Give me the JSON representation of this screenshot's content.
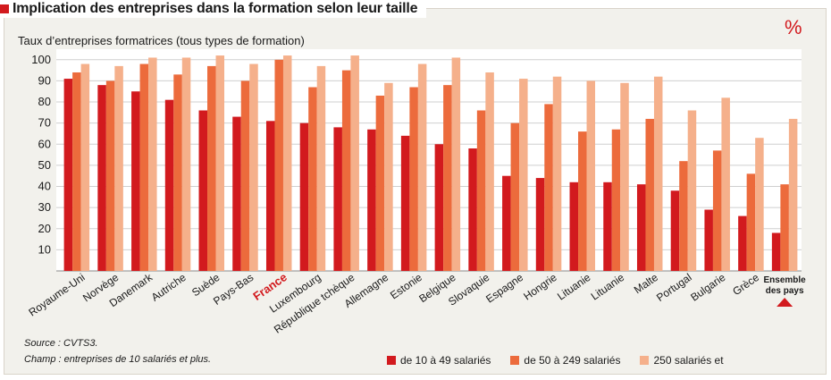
{
  "header": {
    "title": "Implication des entreprises dans la formation selon leur taille",
    "unit": "%"
  },
  "chart_data": {
    "type": "bar",
    "title": "Implication des entreprises dans la formation selon leur taille",
    "ylabel": "Taux d’entreprises formatrices (tous types de formation)",
    "xlabel": "",
    "ylim": [
      0,
      100
    ],
    "yticks": [
      10,
      20,
      30,
      40,
      50,
      60,
      70,
      80,
      90,
      100
    ],
    "grid": true,
    "categories": [
      "Royaume-Uni",
      "Norvège",
      "Danemark",
      "Autriche",
      "Suède",
      "Pays-Bas",
      "France",
      "Luxembourg",
      "République tchèque",
      "Allemagne",
      "Estonie",
      "Belgique",
      "Slovaquie",
      "Espagne",
      "Hongrie",
      "Lituanie",
      "Lituanie",
      "Malte",
      "Portugal",
      "Bulgarie",
      "Grèce",
      "Ensemble des pays"
    ],
    "highlight": {
      "France": "#d21a1e"
    },
    "series": [
      {
        "name": "de 10 à 49 salariés",
        "color": "#d21a1e",
        "values": [
          91,
          88,
          85,
          81,
          76,
          73,
          71,
          70,
          68,
          67,
          64,
          60,
          58,
          45,
          44,
          42,
          42,
          41,
          38,
          29,
          26,
          18
        ]
      },
      {
        "name": "de 50 à 249 salariés",
        "color": "#ec6b3c",
        "values": [
          94,
          90,
          98,
          93,
          97,
          90,
          100,
          87,
          95,
          83,
          87,
          88,
          76,
          70,
          79,
          66,
          67,
          72,
          52,
          57,
          46,
          41
        ]
      },
      {
        "name": "250 salariés et",
        "color": "#f5b08b",
        "values": [
          98,
          97,
          101,
          101,
          102,
          98,
          102,
          97,
          102,
          89,
          98,
          101,
          94,
          91,
          92,
          90,
          89,
          92,
          76,
          82,
          63,
          72
        ]
      }
    ],
    "annotations": [
      "Ensemble des pays"
    ]
  },
  "footer": {
    "source": "Source : CVTS3.",
    "champ": "Champ : entreprises de 10 salariés et plus."
  },
  "colors": {
    "bar_small": "#d21a1e",
    "bar_medium": "#ec6b3c",
    "bar_large": "#f5b08b",
    "accent": "#d21a1e"
  }
}
